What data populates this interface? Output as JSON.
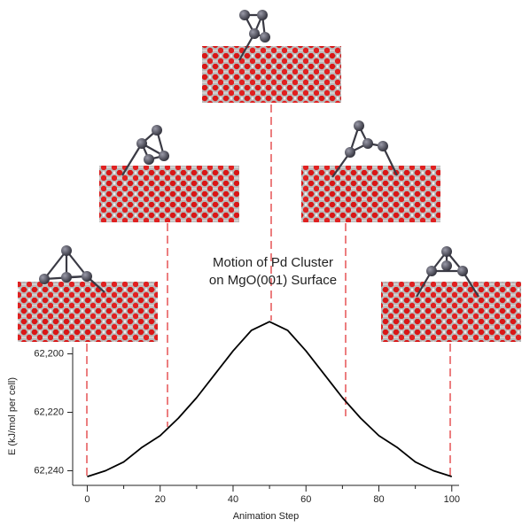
{
  "chart_data": {
    "type": "line",
    "title": [
      "Motion of Pd Cluster",
      "on MgO(001) Surface"
    ],
    "x_label": "Animation Step",
    "y_label": "E (kJ/mol per cell)",
    "x": [
      0,
      5,
      10,
      15,
      20,
      25,
      30,
      35,
      40,
      45,
      50,
      55,
      60,
      65,
      70,
      75,
      80,
      85,
      90,
      95,
      100
    ],
    "values": [
      62242,
      62240,
      62237,
      62232,
      62228,
      62222,
      62215,
      62207,
      62199,
      62192,
      62189,
      62192,
      62199,
      62207,
      62215,
      62222,
      62228,
      62232,
      62237,
      62240,
      62242
    ],
    "color": "#000000",
    "xlim": [
      -4,
      102
    ],
    "xticks": [
      0,
      20,
      40,
      60,
      80,
      100
    ],
    "ylim": [
      62245,
      62185
    ],
    "yticks": [
      {
        "value": 62200,
        "label": "62,200"
      },
      {
        "value": 62220,
        "label": "62,220"
      },
      {
        "value": 62240,
        "label": "62,240"
      }
    ]
  }
}
